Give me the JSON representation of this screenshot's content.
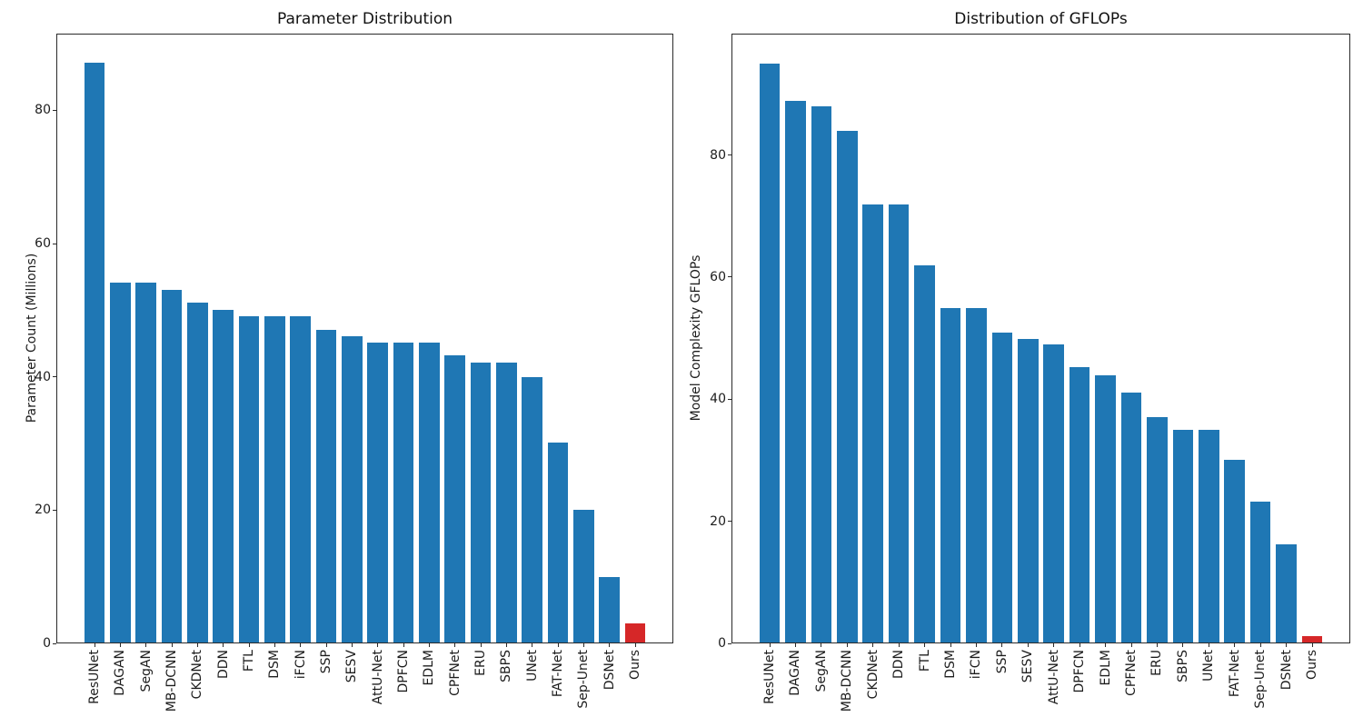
{
  "chart_data": [
    {
      "type": "bar",
      "title": "Parameter Distribution",
      "xlabel": "",
      "ylabel": "Parameter Count (Millions)",
      "categories": [
        "ResUNet",
        "DAGAN",
        "SegAN",
        "MB-DCNN",
        "CKDNet",
        "DDN",
        "FTL",
        "DSM",
        "iFCN",
        "SSP",
        "SESV",
        "AttU-Net",
        "DPFCN",
        "EDLM",
        "CPFNet",
        "ERU",
        "SBPS",
        "UNet",
        "FAT-Net",
        "Sep-Unet",
        "DSNet",
        "Ours"
      ],
      "values": [
        87.1,
        54.2,
        54.2,
        53.1,
        51.2,
        50.1,
        49.1,
        49.1,
        49.1,
        47.1,
        46.1,
        45.1,
        45.1,
        45.1,
        43.2,
        42.2,
        42.2,
        40.0,
        30.2,
        20.0,
        10.0,
        3.0
      ],
      "yticks": [
        0,
        20,
        40,
        60,
        80
      ],
      "ylim": [
        0,
        91.5
      ],
      "grid": false,
      "legend": "none",
      "bar_color": "#1f77b4",
      "highlight_color": "#d62728",
      "highlight_category": "Ours"
    },
    {
      "type": "bar",
      "title": "Distribution of GFLOPs",
      "xlabel": "",
      "ylabel": "Model Complexity GFLOPs",
      "categories": [
        "ResUNet",
        "DAGAN",
        "SegAN",
        "MB-DCNN",
        "CKDNet",
        "DDN",
        "FTL",
        "DSM",
        "iFCN",
        "SSP",
        "SESV",
        "AttU-Net",
        "DPFCN",
        "EDLM",
        "CPFNet",
        "ERU",
        "SBPS",
        "UNet",
        "FAT-Net",
        "Sep-Unet",
        "DSNet",
        "Ours"
      ],
      "values": [
        95.0,
        88.9,
        88.0,
        84.0,
        71.9,
        71.9,
        62.0,
        55.0,
        55.0,
        50.9,
        49.9,
        49.0,
        45.2,
        43.9,
        41.1,
        37.1,
        35.0,
        35.0,
        30.0,
        23.2,
        16.2,
        1.2
      ],
      "yticks": [
        0,
        20,
        40,
        60,
        80
      ],
      "ylim": [
        0,
        99.9
      ],
      "grid": false,
      "legend": "none",
      "bar_color": "#1f77b4",
      "highlight_color": "#d62728",
      "highlight_category": "Ours"
    }
  ]
}
